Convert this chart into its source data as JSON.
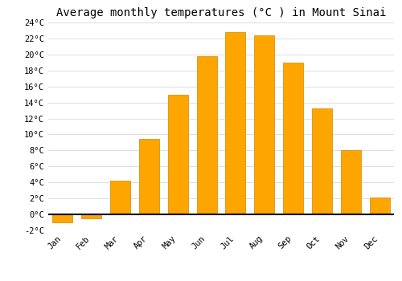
{
  "months": [
    "Jan",
    "Feb",
    "Mar",
    "Apr",
    "May",
    "Jun",
    "Jul",
    "Aug",
    "Sep",
    "Oct",
    "Nov",
    "Dec"
  ],
  "values": [
    -1.0,
    -0.5,
    4.2,
    9.4,
    15.0,
    19.8,
    22.8,
    22.4,
    19.0,
    13.3,
    8.0,
    2.1
  ],
  "bar_color": "#FFA500",
  "bar_edge_color": "#CC8800",
  "title": "Average monthly temperatures (°C ) in Mount Sinai",
  "ylim": [
    -2,
    24
  ],
  "yticks": [
    -2,
    0,
    2,
    4,
    6,
    8,
    10,
    12,
    14,
    16,
    18,
    20,
    22,
    24
  ],
  "ytick_labels": [
    "-2°C",
    "0°C",
    "2°C",
    "4°C",
    "6°C",
    "8°C",
    "10°C",
    "12°C",
    "14°C",
    "16°C",
    "18°C",
    "20°C",
    "22°C",
    "24°C"
  ],
  "bg_color": "#ffffff",
  "grid_color": "#dddddd",
  "title_fontsize": 10,
  "tick_fontsize": 7.5,
  "bar_width": 0.7,
  "font_family": "monospace",
  "label_rotation": 45
}
